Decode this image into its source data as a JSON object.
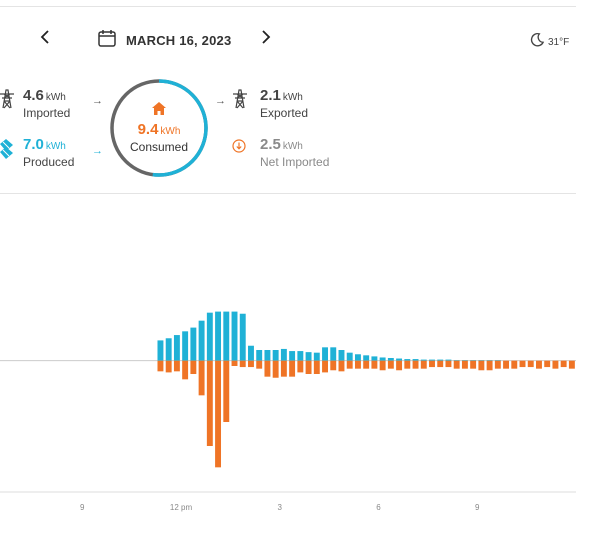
{
  "header": {
    "date": "MARCH 16, 2023",
    "prev_icon": "chevron-left-icon",
    "next_icon": "chevron-right-icon",
    "calendar_icon": "calendar-icon",
    "weather_icon": "moon-icon",
    "temperature": "31°F"
  },
  "summary": {
    "imported": {
      "value": "4.6",
      "unit": "kWh",
      "label": "Imported"
    },
    "produced": {
      "value": "7.0",
      "unit": "kWh",
      "label": "Produced"
    },
    "consumed": {
      "value": "9.4",
      "unit": "kWh",
      "label": "Consumed"
    },
    "exported": {
      "value": "2.1",
      "unit": "kWh",
      "label": "Exported"
    },
    "net_imported": {
      "value": "2.5",
      "unit": "kWh",
      "label": "Net Imported"
    }
  },
  "colors": {
    "solar": "#1fb1d6",
    "consumption": "#ef7426",
    "grid": "#555555",
    "muted": "#8a8a8a"
  },
  "chart_data": {
    "type": "bar",
    "x_tick_labels": [
      {
        "hour": 9,
        "label": "9"
      },
      {
        "hour": 12,
        "label": "12 pm"
      },
      {
        "hour": 15,
        "label": "3"
      },
      {
        "hour": 18,
        "label": "6"
      },
      {
        "hour": 21,
        "label": "9"
      }
    ],
    "interval_start_hours": [
      11.25,
      11.5,
      11.75,
      12.0,
      12.25,
      12.5,
      12.75,
      13.0,
      13.25,
      13.5,
      13.75,
      14.0,
      14.25,
      14.5,
      14.75,
      15.0,
      15.25,
      15.5,
      15.75,
      16.0,
      16.25,
      16.5,
      16.75,
      17.0,
      17.25,
      17.5,
      17.75,
      18.0,
      18.25,
      18.5,
      18.75,
      19.0,
      19.25,
      19.5,
      19.75,
      20.0,
      20.25,
      20.5,
      20.75,
      21.0,
      21.25,
      21.5,
      21.75,
      22.0,
      22.25,
      22.5,
      22.75,
      23.0,
      23.25,
      23.5,
      23.75
    ],
    "series": [
      {
        "values": [
          0.38,
          0.42,
          0.48,
          0.55,
          0.62,
          0.75,
          0.9,
          0.92,
          0.92,
          0.92,
          0.88,
          0.28,
          0.2,
          0.2,
          0.2,
          0.22,
          0.18,
          0.18,
          0.16,
          0.15,
          0.25,
          0.25,
          0.2,
          0.15,
          0.12,
          0.1,
          0.08,
          0.06,
          0.05,
          0.04,
          0.03,
          0.03,
          0.02,
          0.02,
          0.02,
          0.02,
          0.01,
          0.01,
          0.01,
          0.01,
          0.01,
          0.01,
          0.0,
          0.0,
          0.0,
          0.0,
          0.0,
          0.0,
          0.0,
          0.0,
          0.0
        ]
      },
      {
        "values": [
          -0.2,
          -0.22,
          -0.2,
          -0.35,
          -0.25,
          -0.65,
          -1.6,
          -2.0,
          -1.15,
          -0.1,
          -0.12,
          -0.12,
          -0.15,
          -0.3,
          -0.32,
          -0.3,
          -0.3,
          -0.22,
          -0.25,
          -0.25,
          -0.22,
          -0.18,
          -0.2,
          -0.15,
          -0.15,
          -0.15,
          -0.15,
          -0.18,
          -0.15,
          -0.18,
          -0.15,
          -0.15,
          -0.15,
          -0.12,
          -0.12,
          -0.12,
          -0.15,
          -0.15,
          -0.15,
          -0.18,
          -0.18,
          -0.15,
          -0.15,
          -0.15,
          -0.12,
          -0.12,
          -0.15,
          -0.12,
          -0.15,
          -0.12,
          -0.15
        ]
      }
    ],
    "x_range_hours": [
      6.5,
      24.0
    ],
    "ylim": [
      -2.05,
      0.95
    ],
    "grid": false
  }
}
